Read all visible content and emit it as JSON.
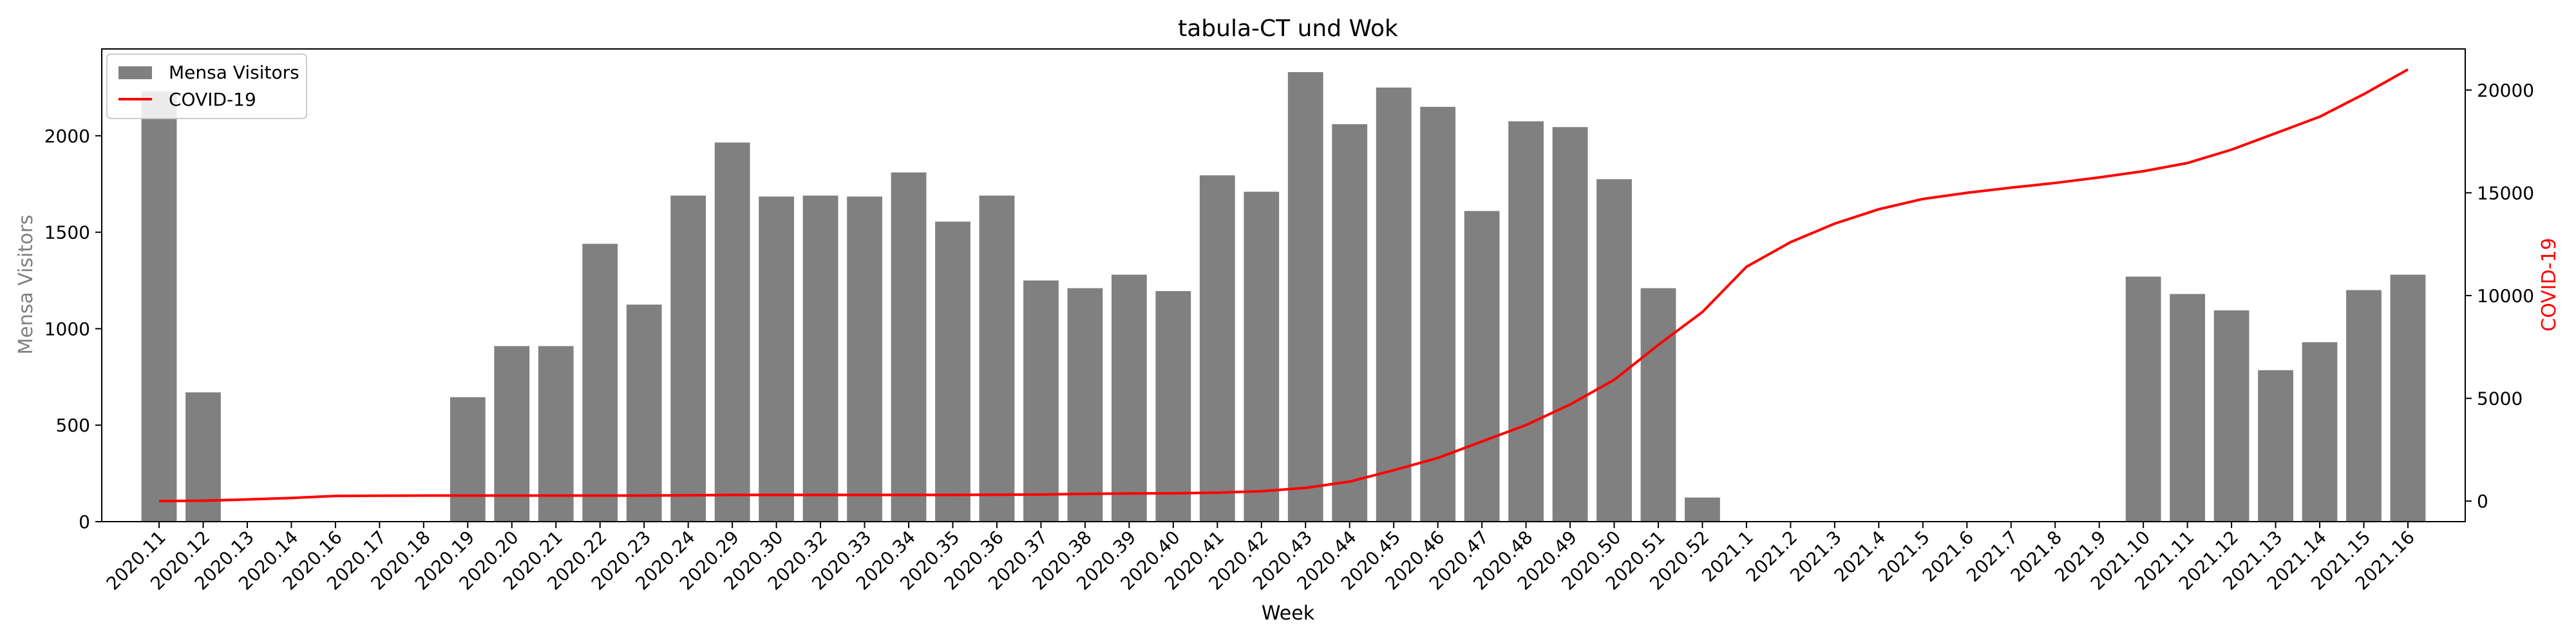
{
  "chart_data": {
    "type": "bar",
    "title": "tabula-CT und Wok",
    "xlabel": "Week",
    "ylabel": "Mensa Visitors",
    "y2label": "COVID-19",
    "ylim": [
      0,
      2450
    ],
    "y2lim": [
      -1000,
      22000
    ],
    "yticks": [
      0,
      500,
      1000,
      1500,
      2000
    ],
    "y2ticks": [
      0,
      5000,
      10000,
      15000,
      20000
    ],
    "categories": [
      "2020.11",
      "2020.12",
      "2020.13",
      "2020.14",
      "2020.16",
      "2020.17",
      "2020.18",
      "2020.19",
      "2020.20",
      "2020.21",
      "2020.22",
      "2020.23",
      "2020.24",
      "2020.29",
      "2020.30",
      "2020.32",
      "2020.33",
      "2020.34",
      "2020.35",
      "2020.36",
      "2020.37",
      "2020.38",
      "2020.39",
      "2020.40",
      "2020.41",
      "2020.42",
      "2020.43",
      "2020.44",
      "2020.45",
      "2020.46",
      "2020.47",
      "2020.48",
      "2020.49",
      "2020.50",
      "2020.51",
      "2020.52",
      "2021.1",
      "2021.2",
      "2021.3",
      "2021.4",
      "2021.5",
      "2021.6",
      "2021.7",
      "2021.8",
      "2021.9",
      "2021.10",
      "2021.11",
      "2021.12",
      "2021.13",
      "2021.14",
      "2021.15",
      "2021.16"
    ],
    "series": [
      {
        "name": "Mensa Visitors",
        "type": "bar",
        "axis": "left",
        "color": "#808080",
        "values": [
          2230,
          670,
          0,
          0,
          0,
          0,
          0,
          645,
          910,
          910,
          1440,
          1125,
          1690,
          1965,
          1685,
          1690,
          1685,
          1810,
          1555,
          1690,
          1250,
          1210,
          1280,
          1195,
          1795,
          1710,
          2330,
          2060,
          2250,
          2150,
          1610,
          2075,
          2045,
          1775,
          1210,
          125,
          0,
          0,
          0,
          0,
          0,
          0,
          0,
          0,
          0,
          1270,
          1180,
          1095,
          785,
          930,
          1200,
          1280
        ]
      },
      {
        "name": "COVID-19",
        "type": "line",
        "axis": "right",
        "color": "#ff0000",
        "values": [
          0,
          20,
          80,
          150,
          250,
          260,
          270,
          270,
          270,
          270,
          270,
          270,
          280,
          300,
          300,
          300,
          300,
          300,
          300,
          310,
          320,
          350,
          370,
          380,
          410,
          480,
          640,
          950,
          1500,
          2100,
          2900,
          3700,
          4700,
          5900,
          7600,
          9200,
          11400,
          12600,
          13500,
          14200,
          14700,
          15000,
          15250,
          15480,
          15750,
          16050,
          16450,
          17100,
          17900,
          18700,
          19800,
          21000
        ]
      }
    ],
    "legend_position": "top-left",
    "grid": false
  }
}
